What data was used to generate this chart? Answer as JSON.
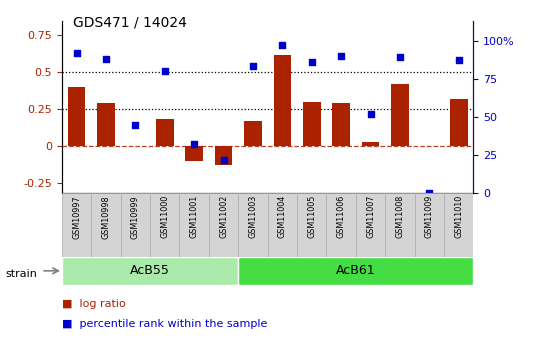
{
  "title": "GDS471 / 14024",
  "samples": [
    "GSM10997",
    "GSM10998",
    "GSM10999",
    "GSM11000",
    "GSM11001",
    "GSM11002",
    "GSM11003",
    "GSM11004",
    "GSM11005",
    "GSM11006",
    "GSM11007",
    "GSM11008",
    "GSM11009",
    "GSM11010"
  ],
  "log_ratio": [
    0.4,
    0.29,
    0.0,
    0.18,
    -0.1,
    -0.13,
    0.17,
    0.62,
    0.3,
    0.29,
    0.03,
    0.42,
    0.0,
    0.32
  ],
  "percentile": [
    92,
    88,
    45,
    80,
    32,
    22,
    83,
    97,
    86,
    90,
    52,
    89,
    0,
    87
  ],
  "bar_color": "#aa2200",
  "dot_color": "#0000cc",
  "ylim_left": [
    -0.32,
    0.85
  ],
  "ylim_right": [
    0,
    113.0
  ],
  "yticks_left": [
    -0.25,
    0.0,
    0.25,
    0.5,
    0.75
  ],
  "yticks_right": [
    0,
    25,
    50,
    75,
    100
  ],
  "hline_zero": 0.0,
  "hline_025": 0.25,
  "hline_050": 0.5,
  "groups": [
    {
      "label": "AcB55",
      "start": 0,
      "end": 6,
      "color": "#aaeaaa"
    },
    {
      "label": "AcB61",
      "start": 6,
      "end": 14,
      "color": "#44dd44"
    }
  ],
  "strain_label": "strain",
  "legend_bar_label": "log ratio",
  "legend_dot_label": "percentile rank within the sample",
  "sample_box_color": "#d4d4d4",
  "sample_box_edge": "#aaaaaa",
  "plot_bg_color": "#ffffff",
  "fig_bg_color": "#ffffff"
}
